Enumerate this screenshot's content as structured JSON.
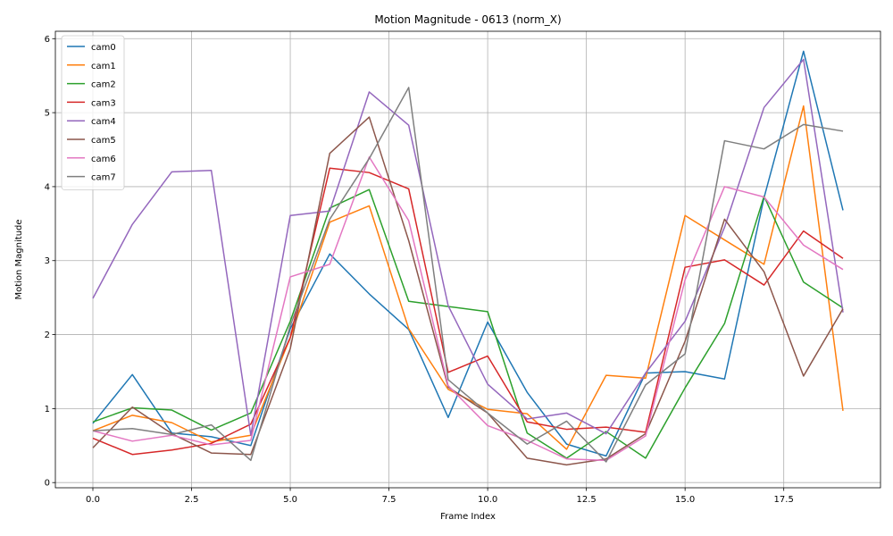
{
  "chart_data": {
    "type": "line",
    "title": "Motion Magnitude - 0613 (norm_X)",
    "xlabel": "Frame Index",
    "ylabel": "Motion Magnitude",
    "xlim": [
      -0.95,
      19.95
    ],
    "ylim": [
      -0.07,
      6.1
    ],
    "xticks": [
      0.0,
      2.5,
      5.0,
      7.5,
      10.0,
      12.5,
      15.0,
      17.5
    ],
    "xtick_labels": [
      "0.0",
      "2.5",
      "5.0",
      "7.5",
      "10.0",
      "12.5",
      "15.0",
      "17.5"
    ],
    "yticks": [
      0,
      1,
      2,
      3,
      4,
      5,
      6
    ],
    "ytick_labels": [
      "0",
      "1",
      "2",
      "3",
      "4",
      "5",
      "6"
    ],
    "grid": true,
    "legend_position": "top-left",
    "x": [
      0,
      1,
      2,
      3,
      4,
      5,
      6,
      7,
      8,
      9,
      10,
      11,
      12,
      13,
      14,
      15,
      16,
      17,
      18,
      19
    ],
    "series": [
      {
        "name": "cam0",
        "color": "#1f77b4",
        "values": [
          0.8,
          1.46,
          0.67,
          0.62,
          0.5,
          2.08,
          3.09,
          2.55,
          2.07,
          0.88,
          2.17,
          1.22,
          0.52,
          0.36,
          1.48,
          1.5,
          1.4,
          3.85,
          5.83,
          3.68
        ]
      },
      {
        "name": "cam1",
        "color": "#ff7f0e",
        "values": [
          0.7,
          0.91,
          0.81,
          0.55,
          0.64,
          1.96,
          3.52,
          3.74,
          2.08,
          1.26,
          0.99,
          0.93,
          0.45,
          1.45,
          1.41,
          3.61,
          3.28,
          2.95,
          5.09,
          0.97
        ]
      },
      {
        "name": "cam2",
        "color": "#2ca02c",
        "values": [
          0.82,
          1.01,
          0.98,
          0.71,
          0.94,
          2.18,
          3.71,
          3.96,
          2.45,
          2.38,
          2.31,
          0.67,
          0.33,
          0.69,
          0.33,
          1.28,
          2.15,
          3.87,
          2.71,
          2.36
        ]
      },
      {
        "name": "cam3",
        "color": "#d62728",
        "values": [
          0.6,
          0.38,
          0.44,
          0.53,
          0.79,
          1.96,
          4.25,
          4.19,
          3.97,
          1.49,
          1.71,
          0.82,
          0.72,
          0.75,
          0.68,
          2.91,
          3.01,
          2.67,
          3.4,
          3.03
        ]
      },
      {
        "name": "cam4",
        "color": "#9467bd",
        "values": [
          2.49,
          3.49,
          4.2,
          4.22,
          0.64,
          3.61,
          3.67,
          5.28,
          4.83,
          2.39,
          1.33,
          0.86,
          0.94,
          0.66,
          1.48,
          2.18,
          3.45,
          5.07,
          5.72,
          2.3
        ]
      },
      {
        "name": "cam5",
        "color": "#8c564b",
        "values": [
          0.47,
          1.02,
          0.66,
          0.4,
          0.38,
          1.81,
          4.45,
          4.94,
          3.27,
          1.29,
          0.94,
          0.33,
          0.24,
          0.32,
          0.66,
          1.91,
          3.56,
          2.85,
          1.44,
          2.35
        ]
      },
      {
        "name": "cam6",
        "color": "#e377c2",
        "values": [
          0.7,
          0.56,
          0.64,
          0.51,
          0.57,
          2.78,
          2.95,
          4.4,
          3.54,
          1.31,
          0.77,
          0.57,
          0.32,
          0.3,
          0.63,
          2.74,
          4.0,
          3.86,
          3.21,
          2.88
        ]
      },
      {
        "name": "cam7",
        "color": "#7f7f7f",
        "values": [
          0.7,
          0.73,
          0.65,
          0.78,
          0.3,
          2.12,
          3.56,
          4.38,
          5.34,
          1.39,
          0.94,
          0.52,
          0.83,
          0.28,
          1.32,
          1.74,
          4.62,
          4.51,
          4.84,
          4.75
        ]
      }
    ]
  }
}
